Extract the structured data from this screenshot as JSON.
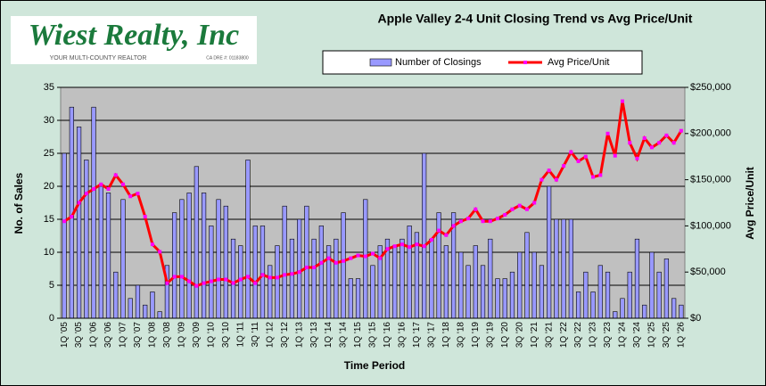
{
  "logo": {
    "name": "Wiest Realty, Inc",
    "tagline": "YOUR MULTI-COUNTY REALTOR",
    "license": "CA DRE #: 01183800"
  },
  "chart_data": {
    "type": "combo",
    "title": "Apple Valley 2-4 Unit Closing Trend vs Avg Price/Unit",
    "x_label": "Time Period",
    "y_label": "No. of Sales",
    "y2_label": "Avg Price/Unit",
    "categories": [
      "1Q '05",
      null,
      "3Q '05",
      null,
      "1Q '06",
      null,
      "3Q '06",
      null,
      "1Q '07",
      null,
      "3Q '07",
      null,
      "1Q '08",
      null,
      "3Q '08",
      null,
      "1Q '09",
      null,
      "3Q '09",
      null,
      "1Q '10",
      null,
      "3Q '10",
      null,
      "1Q '11",
      null,
      "3Q '11",
      null,
      "1Q '12",
      null,
      "3Q '12",
      null,
      "1Q '13",
      null,
      "3Q '13",
      null,
      "1Q '14",
      null,
      "3Q '14",
      null,
      "1Q '15",
      null,
      "3Q '15",
      null,
      "1Q '16",
      null,
      "3Q '16",
      null,
      "1Q '17",
      null,
      "3Q '17",
      null,
      "1Q '18",
      null,
      "3Q '18",
      null,
      "1Q '19",
      null,
      "3Q '19",
      null,
      "1Q '20",
      null,
      "3Q '20",
      null,
      "1Q '21",
      null,
      "3Q '21",
      null,
      "1Q '22",
      null,
      "3Q '22",
      null,
      "1Q '23",
      null,
      "3Q '23",
      null,
      "1Q '24",
      null,
      "3Q '24",
      null,
      "1Q '25",
      null,
      "3Q '25",
      null,
      "1Q '26"
    ],
    "series": [
      {
        "name": "Number of Closings",
        "type": "bar",
        "axis": "y",
        "color": "#9999ff",
        "values": [
          25,
          32,
          29,
          24,
          32,
          20,
          19,
          7,
          18,
          3,
          5,
          2,
          4,
          1,
          8,
          16,
          18,
          19,
          23,
          19,
          14,
          18,
          17,
          12,
          11,
          24,
          14,
          14,
          8,
          11,
          17,
          12,
          15,
          17,
          12,
          14,
          11,
          12,
          16,
          6,
          6,
          18,
          8,
          11,
          12,
          11,
          12,
          14,
          13,
          25,
          12,
          16,
          11,
          16,
          10,
          8,
          11,
          8,
          12,
          6,
          6,
          7,
          10,
          13,
          10,
          8,
          20,
          15,
          15,
          15,
          4,
          7,
          4,
          8,
          7,
          1,
          3,
          7,
          12,
          2,
          10,
          7,
          9,
          3,
          2
        ]
      },
      {
        "name": "Avg Price/Unit",
        "type": "line",
        "axis": "y2",
        "color": "#ff0000",
        "marker_color": "#ff00ff",
        "values": [
          105000,
          110000,
          125000,
          135000,
          140000,
          145000,
          140000,
          155000,
          145000,
          132000,
          135000,
          110000,
          80000,
          72000,
          38000,
          45000,
          45000,
          40000,
          35000,
          38000,
          40000,
          42000,
          42000,
          38000,
          42000,
          45000,
          38000,
          47000,
          44000,
          44000,
          47000,
          48000,
          50000,
          55000,
          55000,
          60000,
          65000,
          60000,
          62000,
          65000,
          68000,
          67000,
          70000,
          65000,
          75000,
          78000,
          80000,
          77000,
          80000,
          78000,
          85000,
          95000,
          90000,
          100000,
          105000,
          108000,
          118000,
          105000,
          105000,
          108000,
          112000,
          118000,
          122000,
          118000,
          125000,
          150000,
          160000,
          150000,
          165000,
          180000,
          170000,
          175000,
          153000,
          155000,
          200000,
          176000,
          235000,
          190000,
          173000,
          195000,
          185000,
          190000,
          198000,
          190000,
          203000
        ]
      }
    ],
    "ylim": [
      0,
      35
    ],
    "yticks": [
      0,
      5,
      10,
      15,
      20,
      25,
      30,
      35
    ],
    "y2lim": [
      0,
      250000
    ],
    "y2ticks": [
      {
        "value": 0,
        "label": "$0"
      },
      {
        "value": 50000,
        "label": "$50,000"
      },
      {
        "value": 100000,
        "label": "$100,000"
      },
      {
        "value": 150000,
        "label": "$150,000"
      },
      {
        "value": 200000,
        "label": "$200,000"
      },
      {
        "value": 250000,
        "label": "$250,000"
      }
    ],
    "grid": true,
    "legend": "top"
  }
}
